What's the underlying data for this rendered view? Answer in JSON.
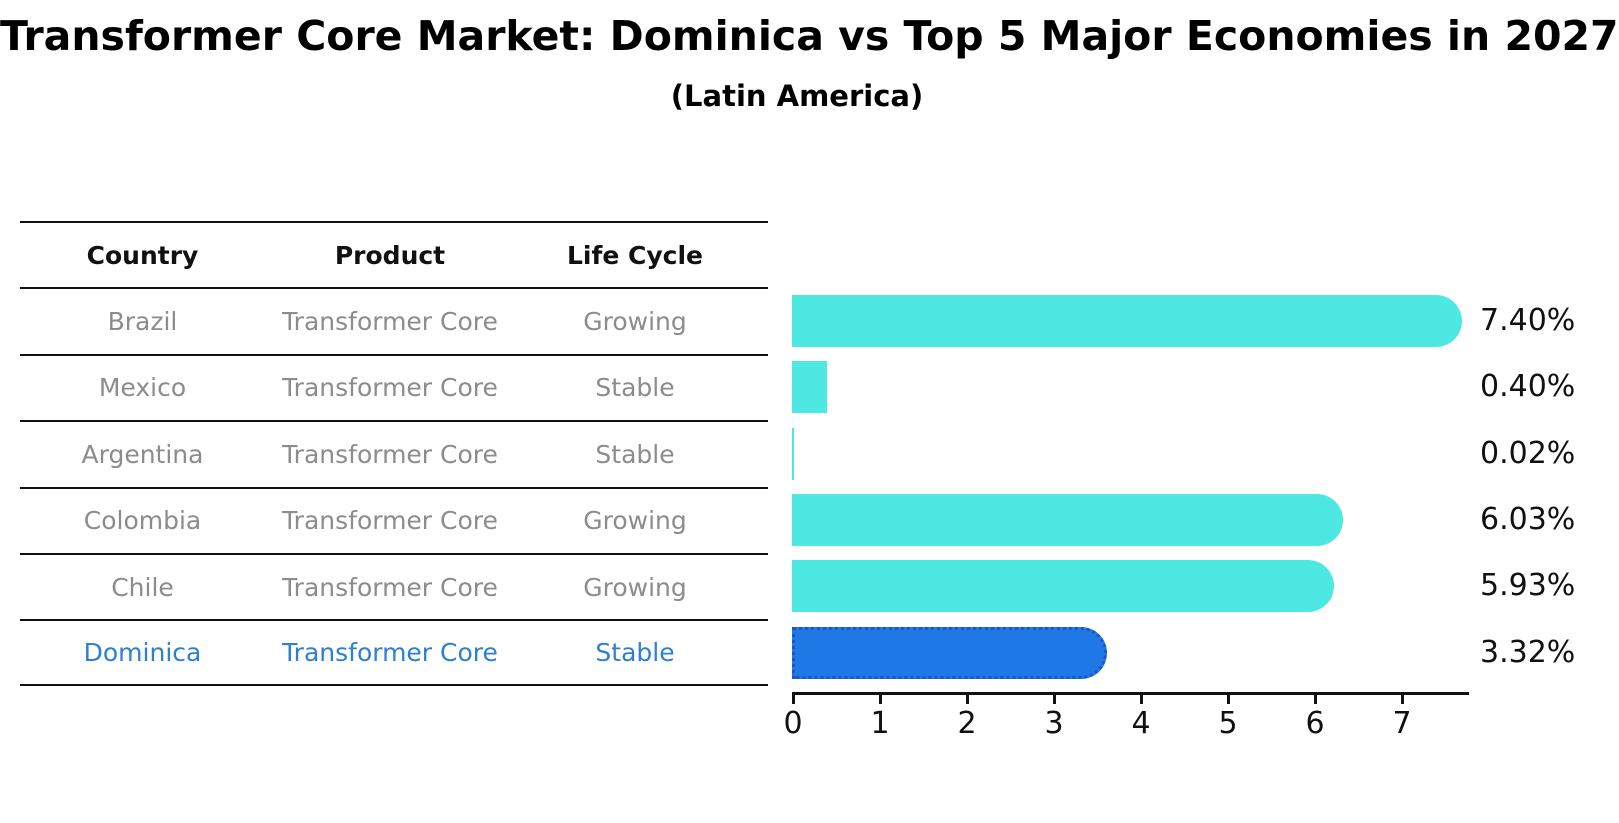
{
  "header": {
    "title": "Transformer Core Market: Dominica vs Top 5 Major Economies in 2027",
    "subtitle": "(Latin America)"
  },
  "table": {
    "columns": [
      "Country",
      "Product",
      "Life Cycle"
    ],
    "rows": [
      {
        "country": "Brazil",
        "product": "Transformer Core",
        "life_cycle": "Growing",
        "highlighted": false
      },
      {
        "country": "Mexico",
        "product": "Transformer Core",
        "life_cycle": "Stable",
        "highlighted": false
      },
      {
        "country": "Argentina",
        "product": "Transformer Core",
        "life_cycle": "Stable",
        "highlighted": false
      },
      {
        "country": "Colombia",
        "product": "Transformer Core",
        "life_cycle": "Growing",
        "highlighted": false
      },
      {
        "country": "Chile",
        "product": "Transformer Core",
        "life_cycle": "Growing",
        "highlighted": false
      },
      {
        "country": "Dominica",
        "product": "Transformer Core",
        "life_cycle": "Stable",
        "highlighted": true
      }
    ]
  },
  "chart_data": {
    "type": "bar",
    "orientation": "horizontal",
    "title": "Transformer Core Market: Dominica vs Top 5 Major Economies in 2027",
    "subtitle": "(Latin America)",
    "categories": [
      "Brazil",
      "Mexico",
      "Argentina",
      "Colombia",
      "Chile",
      "Dominica"
    ],
    "values": [
      7.4,
      0.4,
      0.02,
      6.03,
      5.93,
      3.32
    ],
    "value_labels": [
      "7.40%",
      "0.40%",
      "0.02%",
      "6.03%",
      "5.93%",
      "3.32%"
    ],
    "x_ticks": [
      0,
      1,
      2,
      3,
      4,
      5,
      6,
      7
    ],
    "xlim": [
      0,
      7.78
    ],
    "xlabel": "",
    "ylabel": "",
    "grid": false,
    "legend": false,
    "bar_color": "#4DE8E2",
    "highlight_index": 5,
    "highlight_color": "#1E78E6",
    "highlight_border_color": "#1A57C4",
    "text_color": "#111111",
    "muted_text_color": "#8c8c8c",
    "highlight_text_color": "#2e7fd2"
  }
}
